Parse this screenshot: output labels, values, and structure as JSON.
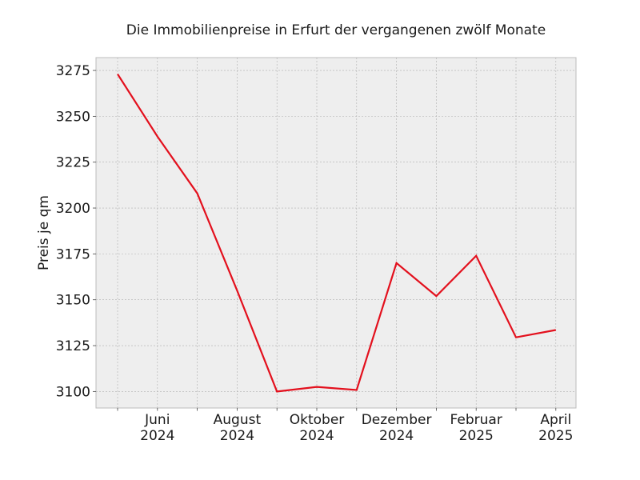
{
  "chart_data": {
    "type": "line",
    "title": "Die Immobilienpreise in Erfurt der vergangenen zwölf Monate",
    "xlabel": "",
    "ylabel": "Preis je qm",
    "x": [
      "2024-05",
      "2024-06",
      "2024-07",
      "2024-08",
      "2024-09",
      "2024-10",
      "2024-11",
      "2024-12",
      "2025-01",
      "2025-02",
      "2025-03",
      "2025-04"
    ],
    "series": [
      {
        "values": [
          3273,
          3239,
          3208,
          3155,
          3100,
          3102.5,
          3100.8,
          3170,
          3152,
          3174,
          3129.5,
          3133.5
        ],
        "color": "#e3101d"
      }
    ],
    "ylim": [
      3091,
      3282
    ],
    "yticks": [
      3100,
      3125,
      3150,
      3175,
      3200,
      3225,
      3250,
      3275
    ],
    "xticks": [
      {
        "x": "2024-06",
        "line1": "Juni",
        "line2": "2024"
      },
      {
        "x": "2024-08",
        "line1": "August",
        "line2": "2024"
      },
      {
        "x": "2024-10",
        "line1": "Oktober",
        "line2": "2024"
      },
      {
        "x": "2024-12",
        "line1": "Dezember",
        "line2": "2024"
      },
      {
        "x": "2025-02",
        "line1": "Februar",
        "line2": "2025"
      },
      {
        "x": "2025-04",
        "line1": "April",
        "line2": "2025"
      }
    ],
    "grid": true,
    "background": "#eeeeee",
    "grid_color": "#b0b0b0"
  }
}
